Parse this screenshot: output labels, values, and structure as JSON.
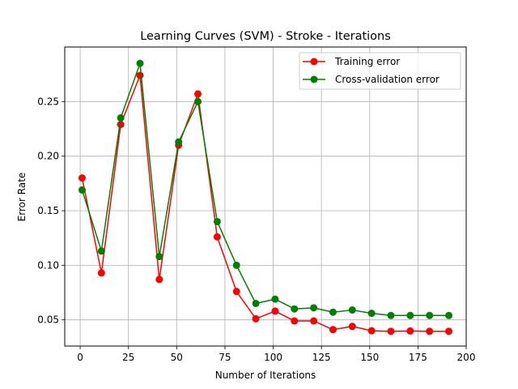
{
  "chart_data": {
    "type": "line",
    "title": "Learning Curves (SVM) - Stroke - Iterations",
    "xlabel": "Number of Iterations",
    "ylabel": "Error Rate",
    "xlim": [
      -8,
      200
    ],
    "ylim": [
      0.026,
      0.3
    ],
    "xticks": [
      0,
      25,
      50,
      75,
      100,
      125,
      150,
      175,
      200
    ],
    "yticks": [
      0.05,
      0.1,
      0.15,
      0.2,
      0.25
    ],
    "ytick_labels": [
      "0.05",
      "0.10",
      "0.15",
      "0.20",
      "0.25"
    ],
    "grid": true,
    "legend_position": "top-right",
    "x": [
      1,
      11,
      21,
      31,
      41,
      51,
      61,
      71,
      81,
      91,
      101,
      111,
      121,
      131,
      141,
      151,
      161,
      171,
      181,
      191
    ],
    "series": [
      {
        "name": "Training error",
        "color": "#ff0000",
        "values": [
          0.18,
          0.093,
          0.229,
          0.274,
          0.087,
          0.21,
          0.257,
          0.126,
          0.076,
          0.051,
          0.058,
          0.049,
          0.049,
          0.041,
          0.044,
          0.04,
          0.0395,
          0.0398,
          0.0395,
          0.0395
        ]
      },
      {
        "name": "Cross-validation error",
        "color": "#008000",
        "values": [
          0.169,
          0.113,
          0.235,
          0.285,
          0.108,
          0.213,
          0.25,
          0.14,
          0.1,
          0.065,
          0.069,
          0.06,
          0.061,
          0.057,
          0.059,
          0.056,
          0.054,
          0.054,
          0.054,
          0.054
        ]
      }
    ]
  }
}
